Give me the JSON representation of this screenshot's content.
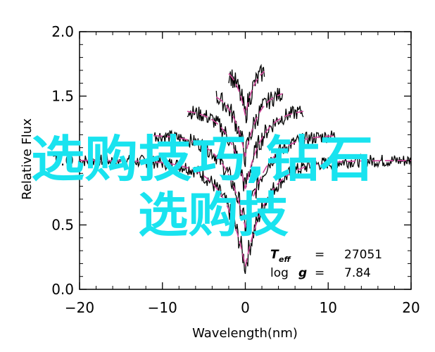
{
  "chart_data": {
    "type": "line",
    "xlabel": "Wavelength(nm)",
    "ylabel": "Relative Flux",
    "xlim": [
      -20,
      20
    ],
    "ylim": [
      0.0,
      2.0
    ],
    "xticks": [
      "−20",
      "−10",
      "0",
      "10",
      "20"
    ],
    "yticks": [
      "0.0",
      "0.5",
      "1.0",
      "1.5",
      "2.0"
    ],
    "grid": false,
    "series": [
      {
        "offset": 0.0,
        "xrange": [
          -20,
          20
        ],
        "depth": 0.82,
        "width": 2.6
      },
      {
        "offset": 0.2,
        "xrange": [
          -11,
          11
        ],
        "depth": 0.72,
        "width": 2.4
      },
      {
        "offset": 0.4,
        "xrange": [
          -7,
          7
        ],
        "depth": 0.62,
        "width": 2.0
      },
      {
        "offset": 0.55,
        "xrange": [
          -3.5,
          4.5
        ],
        "depth": 0.52,
        "width": 1.6
      },
      {
        "offset": 0.75,
        "xrange": [
          -2,
          2.3
        ],
        "depth": 0.4,
        "width": 1.2
      }
    ],
    "colors": {
      "observed": "#000000",
      "model": "#d2449b"
    },
    "annotation": {
      "teff_symbol": "T",
      "teff_sub": "eff",
      "teff_eq": "=",
      "teff_value": "27051",
      "logg_label": "log",
      "logg_symbol": "g",
      "logg_eq": "=",
      "logg_value": "7.84"
    }
  },
  "watermark": {
    "line1": "选购技巧,钻石",
    "line2": "选购技",
    "color": "#19e3ef"
  }
}
